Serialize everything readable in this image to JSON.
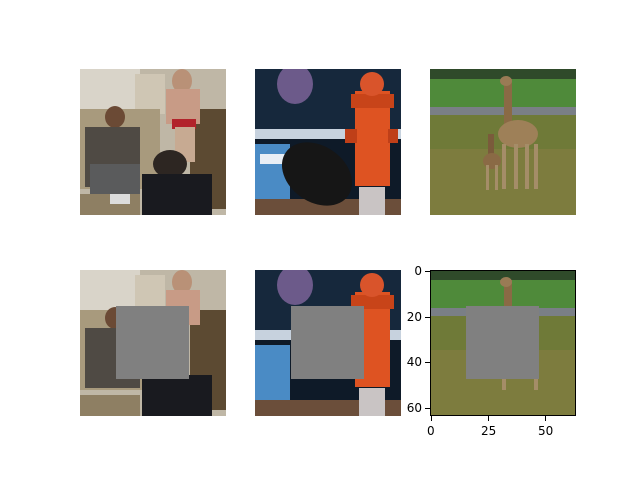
{
  "figure": {
    "rows": 2,
    "cols": 3,
    "images": [
      {
        "subject": "people in living room",
        "masked": false
      },
      {
        "subject": "fire hydrant and suitcase",
        "masked": false
      },
      {
        "subject": "giraffes on grass",
        "masked": false
      },
      {
        "subject": "people in living room",
        "masked": true
      },
      {
        "subject": "fire hydrant and suitcase",
        "masked": true
      },
      {
        "subject": "giraffes on grass",
        "masked": true
      }
    ],
    "mask_color": "#808080",
    "axes_panel": {
      "image_size": 64,
      "x_ticks": [
        "0",
        "25",
        "50"
      ],
      "y_ticks": [
        "0",
        "20",
        "40",
        "60"
      ],
      "mask_region": {
        "x_from": 16,
        "x_to": 48,
        "y_from": 16,
        "y_to": 48
      }
    }
  }
}
